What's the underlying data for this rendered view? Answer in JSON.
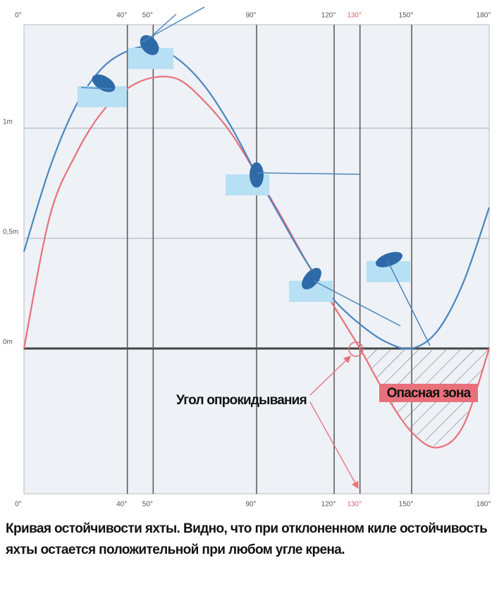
{
  "chart_data": {
    "type": "line",
    "x": [
      0,
      10,
      20,
      30,
      40,
      50,
      60,
      70,
      80,
      90,
      100,
      110,
      120,
      130,
      140,
      150,
      160,
      170,
      180
    ],
    "series": [
      {
        "color": "#e8707a",
        "values": [
          0,
          0.6,
          0.88,
          1.07,
          1.18,
          1.23,
          1.22,
          1.12,
          0.98,
          0.79,
          0.59,
          0.38,
          0.19,
          0,
          -0.21,
          -0.38,
          -0.45,
          -0.35,
          0
        ]
      },
      {
        "color": "#4a86c0",
        "values": [
          0.44,
          0.82,
          1.1,
          1.27,
          1.35,
          1.37,
          1.31,
          1.19,
          1.01,
          0.79,
          0.58,
          0.38,
          0.22,
          0.11,
          0.03,
          0,
          0.08,
          0.3,
          0.64
        ]
      }
    ],
    "xlim": [
      0,
      180
    ],
    "xticks": [
      {
        "value": 0,
        "label": "0°"
      },
      {
        "value": 40,
        "label": "40°"
      },
      {
        "value": 50,
        "label": "50°"
      },
      {
        "value": 90,
        "label": "90°"
      },
      {
        "value": 120,
        "label": "120°"
      },
      {
        "value": 130,
        "label": "130°",
        "color": "#e0606e"
      },
      {
        "value": 150,
        "label": "150°"
      },
      {
        "value": 180,
        "label": "180°"
      }
    ],
    "ylim": [
      -0.66,
      1.47
    ],
    "yticks": [
      {
        "value": 0,
        "label": "0m"
      },
      {
        "value": 0.5,
        "label": "0,5m"
      },
      {
        "value": 1,
        "label": "1m"
      }
    ],
    "grid": true,
    "annotations": [
      "Угол опрокидывания",
      "Опасная зона"
    ],
    "caption": "Кривая остойчивости яхты. Видно, что при отклоненном киле остойчивость яхты остается положительной при любом угле крена."
  }
}
